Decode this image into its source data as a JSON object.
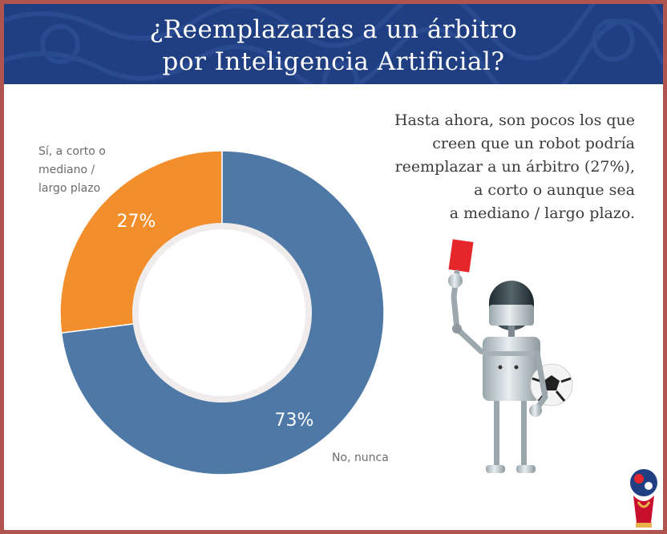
{
  "header": {
    "title_line1": "¿Reemplazarías a un árbitro",
    "title_line2": "por Inteligencia Artificial?",
    "background_color": "#1f3f82"
  },
  "annotation": {
    "lines": [
      "Hasta ahora, son pocos los que",
      "creen que un robot podría",
      "reemplazar a un árbitro (27%),",
      "a corto o aunque sea",
      "a mediano / largo plazo."
    ]
  },
  "chart_data": {
    "type": "pie",
    "donut": true,
    "title": "",
    "categories": [
      "Sí, a corto o mediano / largo plazo",
      "No, nunca"
    ],
    "category_label_lines": [
      [
        "Sí, a corto o",
        "mediano /",
        "largo plazo"
      ],
      [
        "No, nunca"
      ]
    ],
    "values": [
      27,
      73
    ],
    "value_labels": [
      "27%",
      "73%"
    ],
    "colors": [
      "#f28e2b",
      "#4e79a7"
    ],
    "legend": "none"
  },
  "illustration": {
    "robot_icon": "robot-referee-icon",
    "card_icon": "red-card-icon",
    "ball_icon": "soccer-ball-icon",
    "logo_icon": "world-cup-logo-icon"
  }
}
